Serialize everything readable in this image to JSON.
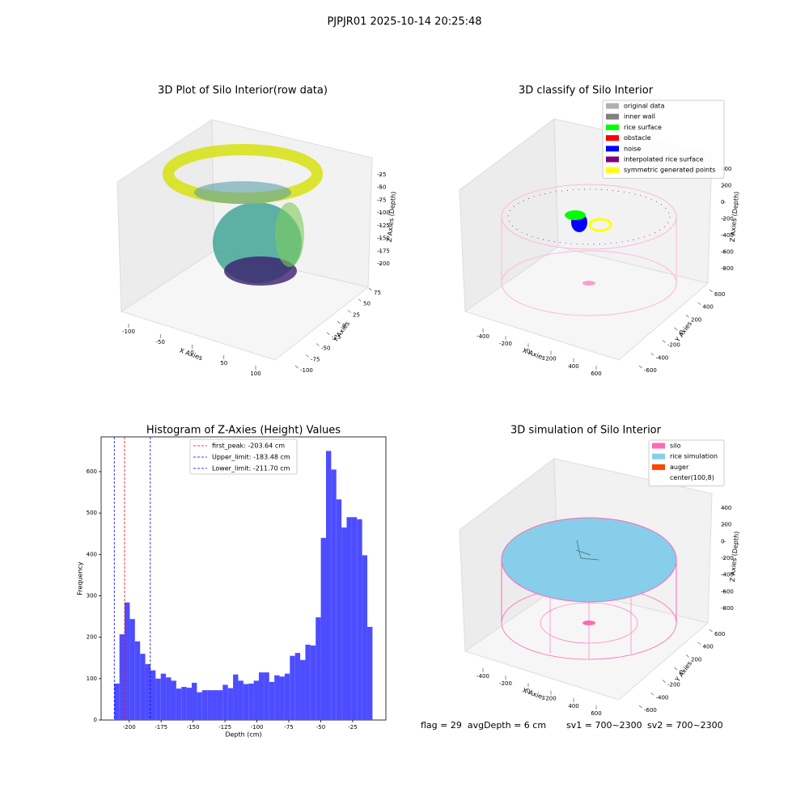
{
  "title": "PJPJR01 2025-10-14 20:25:48",
  "footer": [
    "flag = 29  avgDepth = 6 cm",
    "sv1 = 700~2300",
    "sv2 = 700~2300"
  ],
  "chart_data": [
    {
      "type": "scatter3d",
      "title": "3D Plot of Silo Interior(row data)",
      "xlabel": "X Axies",
      "ylabel": "Y Axies",
      "zlabel": "Z Axies (Depth)",
      "xlim": [
        -115,
        115
      ],
      "xticks": [
        -100,
        -50,
        0,
        50,
        100
      ],
      "ylim": [
        -110,
        85
      ],
      "yticks": [
        -100,
        -75,
        -50,
        -25,
        0,
        25,
        50,
        75
      ],
      "zlim": [
        -215,
        -10
      ],
      "zticks": [
        -200,
        -175,
        -150,
        -125,
        -100,
        -75,
        -50,
        -25
      ]
    },
    {
      "type": "scatter3d",
      "title": "3D classify of Silo Interior",
      "xlabel": "X Axies",
      "ylabel": "Y Axies",
      "zlabel": "Z Axies (Depth)",
      "xlim": [
        -520,
        720
      ],
      "xticks": [
        -400,
        -200,
        0,
        200,
        400,
        600
      ],
      "ylim": [
        -700,
        700
      ],
      "yticks": [
        -600,
        -400,
        -200,
        0,
        200,
        400,
        600
      ],
      "zlim": [
        -900,
        480
      ],
      "zticks": [
        -800,
        -600,
        -400,
        -200,
        0,
        200,
        400
      ],
      "series": [
        {
          "name": "original data",
          "color": "#b0b0b0"
        },
        {
          "name": "inner wall",
          "color": "#808080"
        },
        {
          "name": "rice surface",
          "color": "#00ff00"
        },
        {
          "name": "obstacle",
          "color": "#ff0000"
        },
        {
          "name": "noise",
          "color": "#0000ff"
        },
        {
          "name": "interpolated rice surface",
          "color": "#800080"
        },
        {
          "name": "symmetric generated points",
          "color": "#ffff00"
        }
      ]
    },
    {
      "type": "histogram",
      "title": "Histogram of Z-Axies (Height) Values",
      "xlabel": "Depth (cm)",
      "ylabel": "Frequency",
      "color": "#4d4dff",
      "xlim": [
        -222,
        1
      ],
      "xticks": [
        -200,
        -175,
        -150,
        -125,
        -100,
        -75,
        -50,
        -25
      ],
      "ylim": [
        0,
        684
      ],
      "yticks": [
        0,
        100,
        200,
        300,
        400,
        500,
        600
      ],
      "bins": [
        -211.7,
        -207.66,
        -203.61,
        -199.57,
        -195.52,
        -191.48,
        -187.44,
        -183.39,
        -179.35,
        -175.3,
        -171.26,
        -167.22,
        -163.17,
        -159.13,
        -155.08,
        -151.04,
        -147.0,
        -142.95,
        -138.91,
        -134.86,
        -130.82,
        -126.78,
        -122.73,
        -118.69,
        -114.64,
        -110.6,
        -106.56,
        -102.51,
        -98.47,
        -94.42,
        -90.38,
        -86.34,
        -82.29,
        -78.25,
        -74.2,
        -70.16,
        -66.12,
        -62.07,
        -58.03,
        -53.98,
        -49.94,
        -45.9,
        -41.85,
        -37.81,
        -33.76,
        -29.72,
        -25.68,
        -21.63,
        -17.59,
        -13.54,
        -9.5
      ],
      "values": [
        88,
        207,
        284,
        244,
        190,
        160,
        135,
        120,
        100,
        112,
        103,
        95,
        76,
        80,
        78,
        90,
        67,
        72,
        72,
        72,
        72,
        85,
        77,
        110,
        95,
        87,
        88,
        95,
        115,
        115,
        92,
        108,
        105,
        112,
        155,
        162,
        145,
        182,
        180,
        248,
        440,
        650,
        605,
        533,
        465,
        490,
        490,
        485,
        398,
        225
      ],
      "vlines": [
        {
          "label": "first_peak: -203.64 cm",
          "value": -203.64,
          "color": "#ff0000"
        },
        {
          "label": "Upper_limit: -183.48 cm",
          "value": -183.48,
          "color": "#0000ff"
        },
        {
          "label": "Lower_limit: -211.70 cm",
          "value": -211.7,
          "color": "#0000ff"
        }
      ]
    },
    {
      "type": "scatter3d",
      "title": "3D simulation of Silo Interior",
      "xlabel": "X Axies",
      "ylabel": "Y Axies",
      "zlabel": "Z Axies (Depth)",
      "xlim": [
        -520,
        720
      ],
      "xticks": [
        -400,
        -200,
        0,
        200,
        400,
        600
      ],
      "ylim": [
        -700,
        700
      ],
      "yticks": [
        -600,
        -400,
        -200,
        0,
        200,
        400,
        600
      ],
      "zlim": [
        -900,
        480
      ],
      "zticks": [
        -800,
        -600,
        -400,
        -200,
        0,
        200,
        400
      ],
      "series": [
        {
          "name": "silo",
          "color": "#ff69b4"
        },
        {
          "name": "rice simulation",
          "color": "#87ceeb"
        },
        {
          "name": "auger",
          "color": "#ff4500"
        },
        {
          "name": "center(100,8)"
        }
      ]
    }
  ]
}
